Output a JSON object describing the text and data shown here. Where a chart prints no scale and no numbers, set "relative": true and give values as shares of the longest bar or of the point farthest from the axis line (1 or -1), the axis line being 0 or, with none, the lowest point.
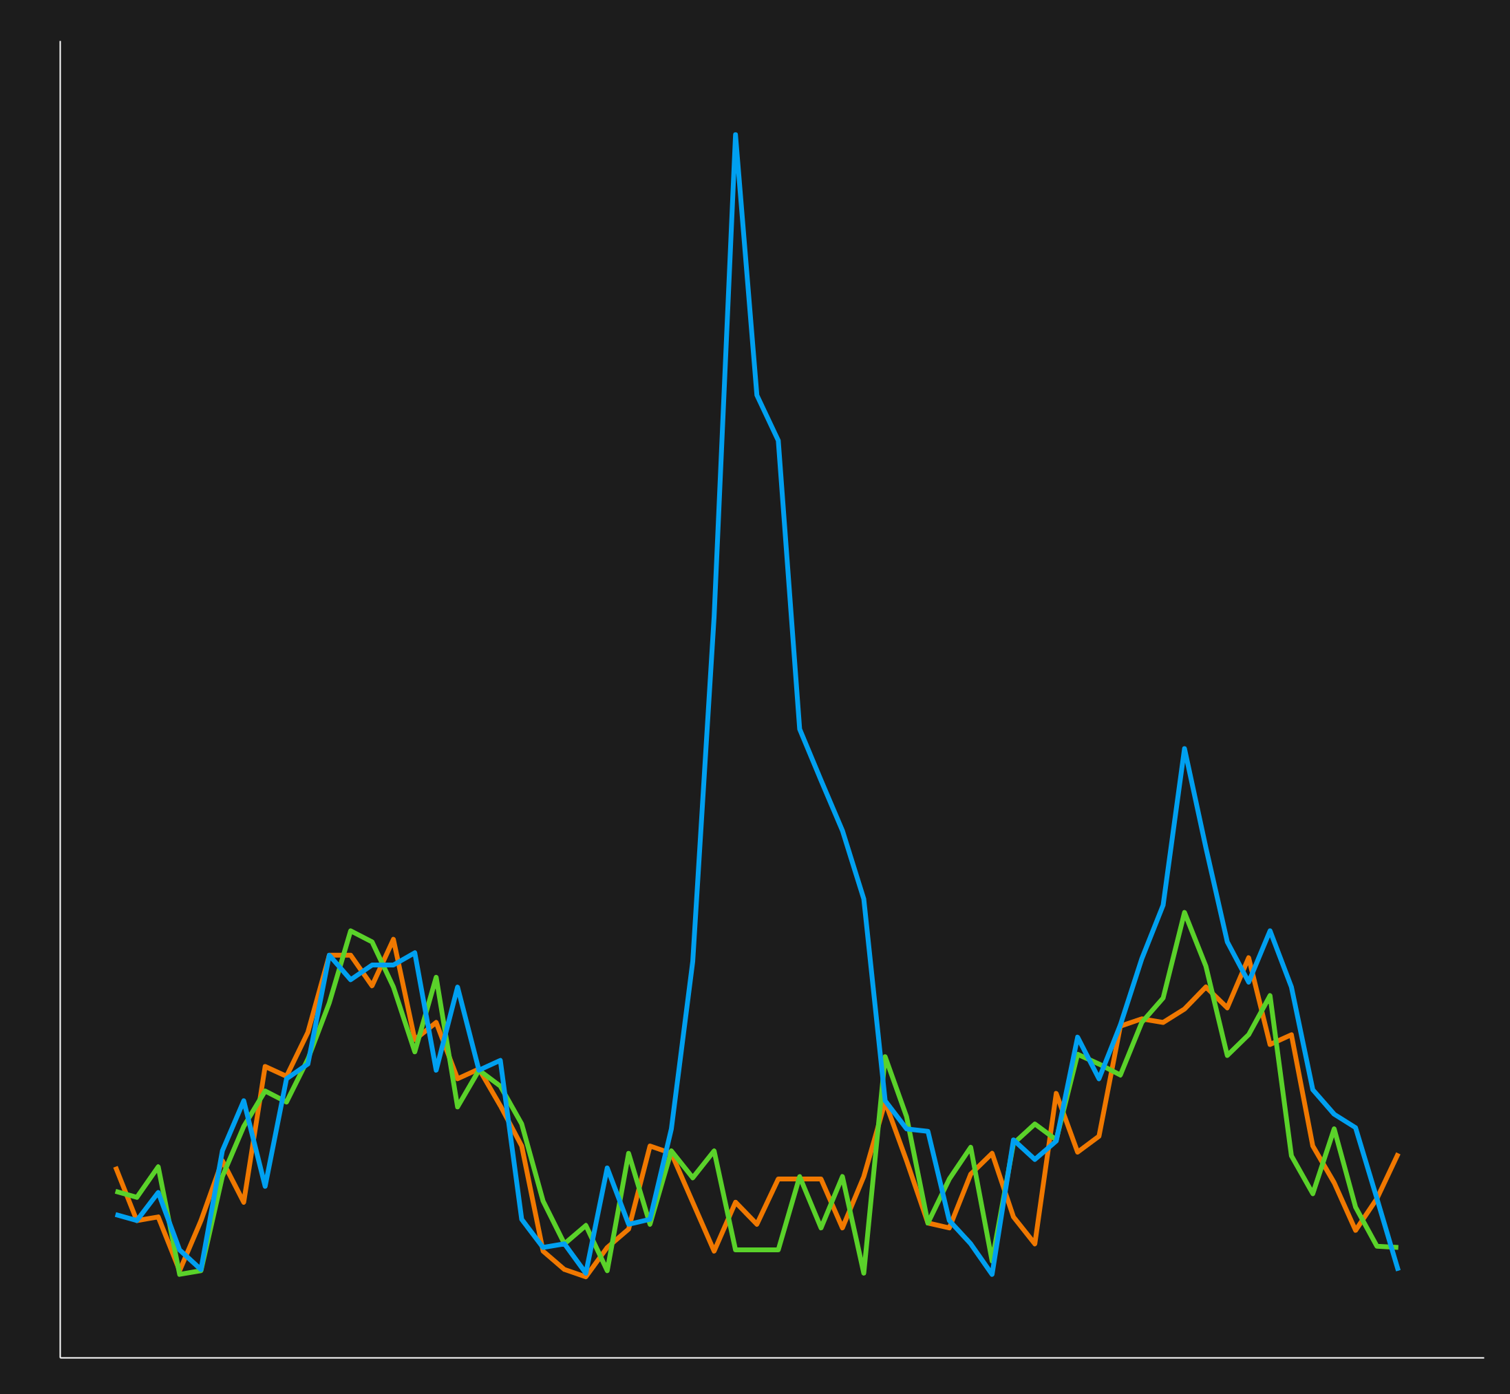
{
  "chart_data": {
    "type": "line",
    "relative": true,
    "categories": [
      null,
      null,
      null,
      null,
      null,
      null,
      null,
      null,
      null,
      null,
      null,
      null,
      null,
      null,
      null,
      null,
      null,
      null,
      null,
      null,
      null,
      null,
      null,
      null,
      null,
      null,
      null,
      null,
      null,
      null,
      null,
      null,
      null,
      null,
      null,
      null,
      null,
      null,
      null,
      null,
      null,
      null,
      null,
      null,
      null,
      null,
      null,
      null,
      null,
      null,
      null,
      null,
      null,
      null,
      null,
      null,
      null,
      null,
      null,
      null,
      null
    ],
    "series": [
      {
        "color": "#f07800",
        "values": [
          0.156,
          0.112,
          0.115,
          0.071,
          0.112,
          0.161,
          0.127,
          0.238,
          0.23,
          0.266,
          0.329,
          0.329,
          0.304,
          0.342,
          0.26,
          0.274,
          0.228,
          0.236,
          0.206,
          0.173,
          0.087,
          0.072,
          0.066,
          0.09,
          0.105,
          0.173,
          0.167,
          0.127,
          0.087,
          0.127,
          0.109,
          0.146,
          0.146,
          0.146,
          0.106,
          0.148,
          0.209,
          0.161,
          0.11,
          0.106,
          0.15,
          0.167,
          0.115,
          0.093,
          0.216,
          0.168,
          0.181,
          0.271,
          0.277,
          0.274,
          0.285,
          0.303,
          0.286,
          0.327,
          0.256,
          0.264,
          0.173,
          0.143,
          0.104,
          0.13,
          0.167
        ]
      },
      {
        "color": "#5ad22a",
        "values": [
          0.136,
          0.131,
          0.156,
          0.068,
          0.071,
          0.148,
          0.189,
          0.218,
          0.209,
          0.244,
          0.29,
          0.349,
          0.34,
          0.303,
          0.25,
          0.311,
          0.205,
          0.235,
          0.222,
          0.191,
          0.128,
          0.093,
          0.108,
          0.071,
          0.167,
          0.109,
          0.169,
          0.147,
          0.169,
          0.088,
          0.088,
          0.088,
          0.148,
          0.106,
          0.148,
          0.069,
          0.246,
          0.197,
          0.11,
          0.146,
          0.172,
          0.079,
          0.175,
          0.191,
          0.178,
          0.248,
          0.24,
          0.231,
          0.274,
          0.294,
          0.364,
          0.32,
          0.247,
          0.264,
          0.296,
          0.165,
          0.134,
          0.187,
          0.123,
          0.091,
          0.09
        ]
      },
      {
        "color": "#00a0f0",
        "values": [
          0.117,
          0.112,
          0.135,
          0.088,
          0.072,
          0.169,
          0.21,
          0.14,
          0.228,
          0.24,
          0.329,
          0.309,
          0.321,
          0.321,
          0.331,
          0.235,
          0.303,
          0.235,
          0.243,
          0.113,
          0.09,
          0.093,
          0.069,
          0.155,
          0.109,
          0.113,
          0.187,
          0.324,
          0.606,
          1,
          0.787,
          0.75,
          0.514,
          0.472,
          0.431,
          0.375,
          0.21,
          0.187,
          0.185,
          0.112,
          0.093,
          0.068,
          0.178,
          0.162,
          0.177,
          0.262,
          0.228,
          0.272,
          0.326,
          0.37,
          0.498,
          0.417,
          0.34,
          0.307,
          0.349,
          0.303,
          0.219,
          0.199,
          0.188,
          0.13,
          0.071
        ]
      }
    ]
  }
}
